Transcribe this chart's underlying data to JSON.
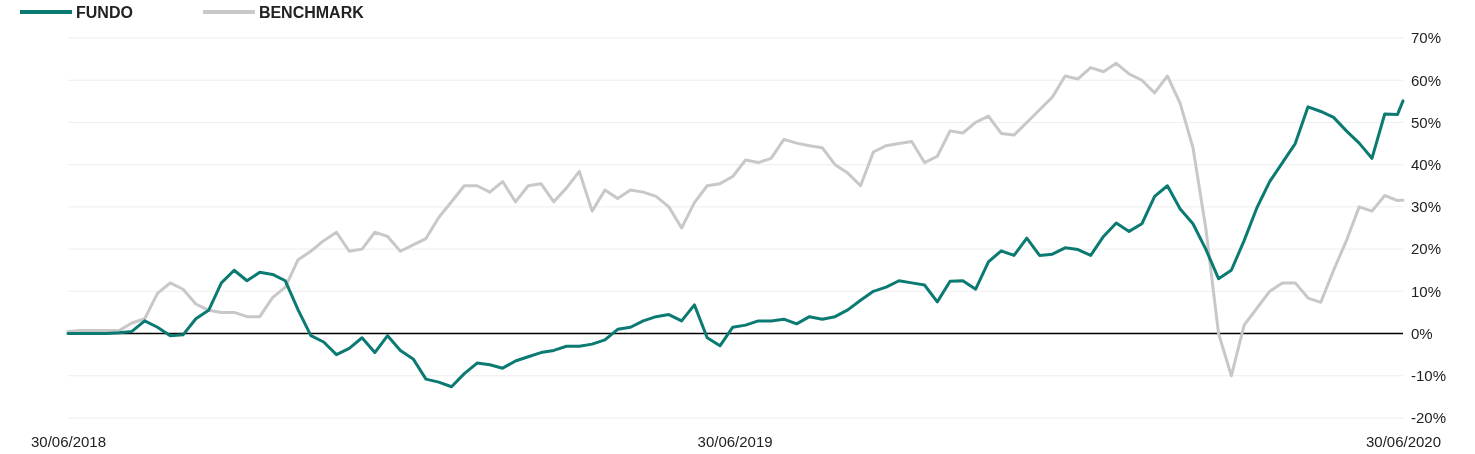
{
  "chart_data": {
    "type": "line",
    "legend": "top left",
    "grid": "y",
    "line_style": "solid",
    "marker": "none",
    "x": [
      "2018-06-30",
      "2018-07-07",
      "2018-07-14",
      "2018-07-21",
      "2018-07-28",
      "2018-08-04",
      "2018-08-11",
      "2018-08-18",
      "2018-08-25",
      "2018-09-01",
      "2018-09-08",
      "2018-09-15",
      "2018-09-22",
      "2018-09-29",
      "2018-10-06",
      "2018-10-13",
      "2018-10-20",
      "2018-10-27",
      "2018-11-03",
      "2018-11-10",
      "2018-11-17",
      "2018-11-24",
      "2018-12-01",
      "2018-12-08",
      "2018-12-15",
      "2018-12-22",
      "2018-12-29",
      "2019-01-05",
      "2019-01-12",
      "2019-01-19",
      "2019-01-26",
      "2019-02-02",
      "2019-02-09",
      "2019-02-16",
      "2019-02-23",
      "2019-03-02",
      "2019-03-09",
      "2019-03-16",
      "2019-03-23",
      "2019-03-30",
      "2019-04-06",
      "2019-04-13",
      "2019-04-20",
      "2019-04-27",
      "2019-05-04",
      "2019-05-11",
      "2019-05-18",
      "2019-05-25",
      "2019-06-01",
      "2019-06-08",
      "2019-06-15",
      "2019-06-22",
      "2019-06-29",
      "2019-07-06",
      "2019-07-13",
      "2019-07-20",
      "2019-07-27",
      "2019-08-03",
      "2019-08-10",
      "2019-08-17",
      "2019-08-24",
      "2019-08-31",
      "2019-09-07",
      "2019-09-14",
      "2019-09-21",
      "2019-09-28",
      "2019-10-05",
      "2019-10-12",
      "2019-10-19",
      "2019-10-26",
      "2019-11-02",
      "2019-11-09",
      "2019-11-16",
      "2019-11-23",
      "2019-11-30",
      "2019-12-07",
      "2019-12-14",
      "2019-12-21",
      "2019-12-28",
      "2020-01-04",
      "2020-01-11",
      "2020-01-18",
      "2020-01-25",
      "2020-02-01",
      "2020-02-08",
      "2020-02-15",
      "2020-02-22",
      "2020-02-29",
      "2020-03-07",
      "2020-03-14",
      "2020-03-21",
      "2020-03-28",
      "2020-04-04",
      "2020-04-11",
      "2020-04-18",
      "2020-04-25",
      "2020-05-02",
      "2020-05-09",
      "2020-05-16",
      "2020-05-23",
      "2020-05-30",
      "2020-06-06",
      "2020-06-13",
      "2020-06-20",
      "2020-06-27",
      "2020-06-30"
    ],
    "series": [
      {
        "name": "FUNDO",
        "color": "#0b7a72",
        "values": [
          0,
          0,
          0,
          0,
          0.2,
          0.5,
          3,
          1.5,
          -0.5,
          -0.3,
          3.5,
          5.5,
          12,
          15,
          12.5,
          14.5,
          14,
          12.5,
          5.6,
          -0.5,
          -2,
          -5,
          -3.5,
          -1,
          -4.5,
          -0.5,
          -4,
          -6,
          -10.8,
          -11.5,
          -12.6,
          -9.5,
          -7,
          -7.4,
          -8.2,
          -6.5,
          -5.5,
          -4.5,
          -4,
          -3,
          -3,
          -2.5,
          -1.5,
          1,
          1.5,
          3,
          4,
          4.5,
          3,
          6.8,
          -1,
          -2.9,
          1.5,
          2,
          3,
          3,
          3.4,
          2.3,
          4,
          3.4,
          4,
          5.6,
          7.9,
          10,
          11,
          12.5,
          12,
          11.5,
          7.5,
          12.4,
          12.5,
          10.5,
          17,
          19.6,
          18.5,
          22.6,
          18.5,
          18.8,
          20.3,
          19.9,
          18.5,
          23,
          26.2,
          24.2,
          26,
          32.5,
          35,
          29.5,
          26,
          20,
          13,
          15,
          22,
          29.8,
          36,
          40.5,
          45,
          53.7,
          52.6,
          51.2,
          48,
          45.1,
          41.5,
          52,
          51.9,
          55.1
        ]
      },
      {
        "name": "BENCHMARK",
        "color": "#c8c8c8",
        "values": [
          0.5,
          0.7,
          0.7,
          0.7,
          0.7,
          2.5,
          3.5,
          9.5,
          12,
          10.5,
          7,
          5.5,
          5,
          5,
          4,
          4,
          8.5,
          11,
          17.5,
          19.5,
          22,
          24,
          19.5,
          20,
          24,
          23,
          19.5,
          21,
          22.5,
          27.5,
          31.2,
          35,
          35,
          33.5,
          36,
          31.2,
          35,
          35.5,
          31.2,
          34.5,
          38.4,
          29,
          34,
          32,
          34,
          33.5,
          32.5,
          30,
          25,
          31,
          35,
          35.5,
          37.2,
          41.1,
          40.5,
          41.5,
          46,
          45.1,
          44.5,
          44,
          40,
          38,
          35,
          43,
          44.5,
          45,
          45.5,
          40.5,
          42,
          48,
          47.5,
          50,
          51.5,
          47.4,
          47,
          50,
          53,
          56,
          61,
          60.3,
          63,
          62,
          64,
          61.5,
          60,
          57,
          61,
          54.5,
          44,
          25,
          0,
          -10,
          2,
          6,
          10,
          12,
          12,
          8.4,
          7.4,
          15,
          22,
          30,
          29,
          32.7,
          31.5,
          31.6
        ]
      }
    ],
    "xlim": [
      "2018-06-30",
      "2020-06-30"
    ],
    "xticks": [
      {
        "value": "2018-06-30",
        "label": "30/06/2018"
      },
      {
        "value": "2019-06-30",
        "label": "30/06/2019"
      },
      {
        "value": "2020-06-30",
        "label": "30/06/2020"
      }
    ],
    "ylim": [
      -20,
      70
    ],
    "yticks": [
      {
        "value": -20,
        "label": "-20%"
      },
      {
        "value": -10,
        "label": "-10%"
      },
      {
        "value": 0,
        "label": "0%"
      },
      {
        "value": 10,
        "label": "10%"
      },
      {
        "value": 20,
        "label": "20%"
      },
      {
        "value": 30,
        "label": "30%"
      },
      {
        "value": 40,
        "label": "40%"
      },
      {
        "value": 50,
        "label": "50%"
      },
      {
        "value": 60,
        "label": "60%"
      },
      {
        "value": 70,
        "label": "70%"
      }
    ],
    "ref_lines": [
      {
        "axis": "y",
        "value": 0,
        "color": "#000000"
      }
    ]
  }
}
